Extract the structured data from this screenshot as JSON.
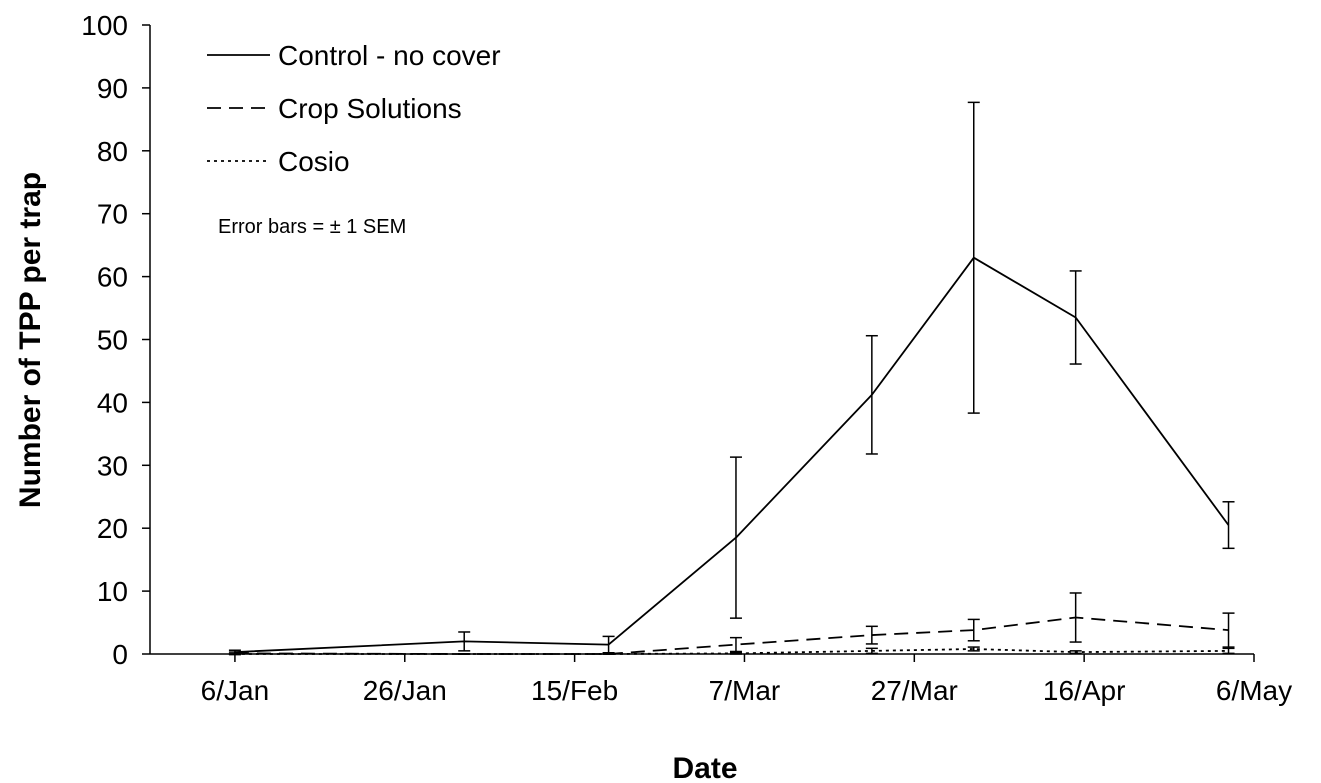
{
  "chart_data": {
    "type": "line",
    "xlabel": "Date",
    "ylabel": "Number of TPP per trap",
    "ylim": [
      0,
      100
    ],
    "yticks": [
      0,
      10,
      20,
      30,
      40,
      50,
      60,
      70,
      80,
      90,
      100
    ],
    "x_tick_labels": [
      "6/Jan",
      "26/Jan",
      "15/Feb",
      "7/Mar",
      "27/Mar",
      "16/Apr",
      "6/May"
    ],
    "x_tick_dates": [
      "2010-01-06",
      "2010-01-26",
      "2010-02-15",
      "2010-03-07",
      "2010-03-27",
      "2010-04-16",
      "2010-05-06"
    ],
    "xlim": [
      "2009-12-27",
      "2010-05-06"
    ],
    "annotation": "Error bars = ± 1 SEM",
    "legend_position": "top-left",
    "grid": false,
    "series": [
      {
        "name": "Control - no cover",
        "style": "solid",
        "points": [
          {
            "x": "2010-01-06",
            "y": 0.3,
            "err": 0.3
          },
          {
            "x": "2010-02-02",
            "y": 2.0,
            "err": 1.5
          },
          {
            "x": "2010-02-19",
            "y": 1.5,
            "err": 1.3
          },
          {
            "x": "2010-03-06",
            "y": 18.5,
            "err": 12.8
          },
          {
            "x": "2010-03-22",
            "y": 41.2,
            "err": 9.4
          },
          {
            "x": "2010-04-03",
            "y": 63.0,
            "err": 24.7
          },
          {
            "x": "2010-04-15",
            "y": 53.5,
            "err": 7.4
          },
          {
            "x": "2010-05-03",
            "y": 20.5,
            "err": 3.7
          }
        ]
      },
      {
        "name": "Crop Solutions",
        "style": "dashed",
        "points": [
          {
            "x": "2010-01-06",
            "y": 0.1,
            "err": 0.2
          },
          {
            "x": "2010-02-02",
            "y": 0.0,
            "err": 0.0
          },
          {
            "x": "2010-02-19",
            "y": 0.0,
            "err": 0.0
          },
          {
            "x": "2010-03-06",
            "y": 1.5,
            "err": 1.1
          },
          {
            "x": "2010-03-22",
            "y": 3.0,
            "err": 1.4
          },
          {
            "x": "2010-04-03",
            "y": 3.8,
            "err": 1.7
          },
          {
            "x": "2010-04-15",
            "y": 5.8,
            "err": 3.9
          },
          {
            "x": "2010-05-03",
            "y": 3.8,
            "err": 2.7
          }
        ]
      },
      {
        "name": "Cosio",
        "style": "dotted",
        "points": [
          {
            "x": "2010-01-06",
            "y": 0.0,
            "err": 0.0
          },
          {
            "x": "2010-02-02",
            "y": 0.0,
            "err": 0.0
          },
          {
            "x": "2010-02-19",
            "y": 0.0,
            "err": 0.0
          },
          {
            "x": "2010-03-06",
            "y": 0.1,
            "err": 0.1
          },
          {
            "x": "2010-03-22",
            "y": 0.5,
            "err": 0.4
          },
          {
            "x": "2010-04-03",
            "y": 0.8,
            "err": 0.3
          },
          {
            "x": "2010-04-15",
            "y": 0.3,
            "err": 0.2
          },
          {
            "x": "2010-05-03",
            "y": 0.5,
            "err": 0.4
          }
        ]
      }
    ]
  }
}
